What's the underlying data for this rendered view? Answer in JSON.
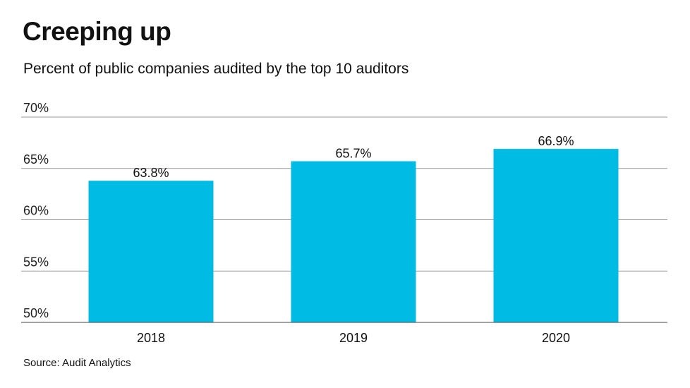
{
  "chart_data": {
    "type": "bar",
    "title": "Creeping up",
    "subtitle": "Percent of public companies audited by the top 10 auditors",
    "categories": [
      "2018",
      "2019",
      "2020"
    ],
    "values": [
      63.8,
      65.7,
      66.9
    ],
    "data_labels": [
      "63.8%",
      "65.7%",
      "66.9%"
    ],
    "ylim": [
      50,
      70
    ],
    "yticks": [
      50,
      55,
      60,
      65,
      70
    ],
    "ytick_labels": [
      "50%",
      "55%",
      "60%",
      "65%",
      "70%"
    ],
    "grid": true,
    "bar_color": "#00BCE4",
    "source": "Source: Audit Analytics"
  }
}
